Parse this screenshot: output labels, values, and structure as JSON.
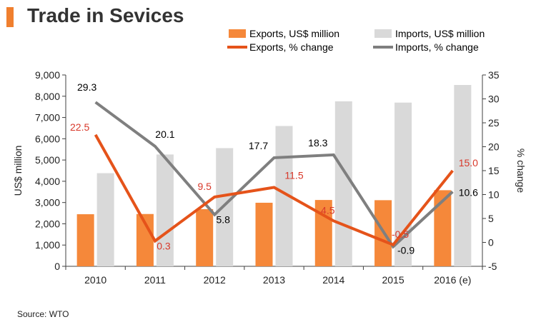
{
  "page": {
    "title": "Trade in Sevices",
    "source": "Source: WTO"
  },
  "colors": {
    "accent": "#f07f2e",
    "exports_bar": "#f5883a",
    "imports_bar": "#d9d9d9",
    "exports_line": "#e5531a",
    "imports_line": "#7f7f7f",
    "exports_label": "#d8382a",
    "imports_label": "#000000"
  },
  "chart_data": {
    "type": "bar",
    "title": "Trade in Sevices",
    "categories": [
      "2010",
      "2011",
      "2012",
      "2013",
      "2014",
      "2015",
      "2016 (e)"
    ],
    "series": [
      {
        "name": "Exports, US$ million",
        "kind": "bar",
        "axis": "left",
        "values": [
          2450,
          2460,
          2690,
          2990,
          3120,
          3110,
          3580
        ]
      },
      {
        "name": "Imports, US$ million",
        "kind": "bar",
        "axis": "left",
        "values": [
          4380,
          5260,
          5560,
          6600,
          7760,
          7700,
          8530
        ]
      },
      {
        "name": "Exports, % change",
        "kind": "line",
        "axis": "right",
        "values": [
          22.5,
          0.3,
          9.5,
          11.5,
          4.5,
          -0.5,
          15.0
        ],
        "labels": [
          "22.5",
          "0.3",
          "9.5",
          "11.5",
          "4.5",
          "-0.5",
          "15.0"
        ]
      },
      {
        "name": "Imports, % change",
        "kind": "line",
        "axis": "right",
        "values": [
          29.3,
          20.1,
          5.8,
          17.7,
          18.3,
          -0.9,
          10.6
        ],
        "labels": [
          "29.3",
          "20.1",
          "5.8",
          "17.7",
          "18.3",
          "-0.9",
          "10.6"
        ]
      }
    ],
    "ylabel": "US$ million",
    "ylim": [
      0,
      9000
    ],
    "yticks": [
      0,
      1000,
      2000,
      3000,
      4000,
      5000,
      6000,
      7000,
      8000,
      9000
    ],
    "ytick_labels": [
      "0",
      "1,000",
      "2,000",
      "3,000",
      "4,000",
      "5,000",
      "6,000",
      "7,000",
      "8,000",
      "9,000"
    ],
    "y2label": "% change",
    "y2lim": [
      -5,
      35
    ],
    "y2ticks": [
      -5,
      0,
      5,
      10,
      15,
      20,
      25,
      30,
      35
    ],
    "y2tick_labels": [
      "-5",
      "0",
      "5",
      "10",
      "15",
      "20",
      "25",
      "30",
      "35"
    ],
    "grid": false,
    "legend_position": "top-right"
  }
}
